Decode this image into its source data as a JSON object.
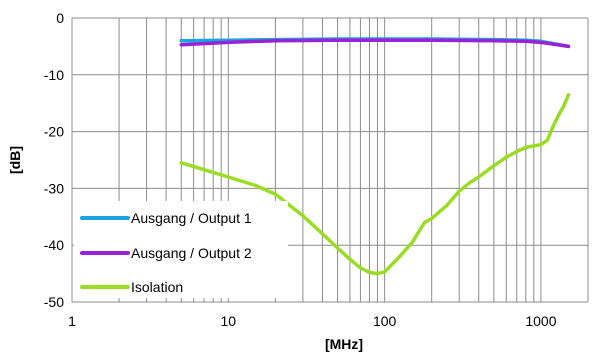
{
  "chart_data": {
    "type": "line",
    "xlabel": "[MHz]",
    "ylabel": "[dB]",
    "x_scale": "log",
    "xlim": [
      1,
      2000
    ],
    "ylim": [
      -50,
      0
    ],
    "x_ticks": [
      1,
      10,
      100,
      1000
    ],
    "x_tick_labels": [
      "1",
      "10",
      "100",
      "1000"
    ],
    "y_ticks": [
      0,
      -10,
      -20,
      -30,
      -40,
      -50
    ],
    "y_tick_labels": [
      "0",
      "-10",
      "-20",
      "-30",
      "-40",
      "-50"
    ],
    "grid": true,
    "legend_position": "bottom-left",
    "series": [
      {
        "name": "Ausgang / Output 1",
        "color": "#1aa3e0",
        "x": [
          5,
          10,
          20,
          50,
          100,
          200,
          500,
          800,
          1000,
          1200,
          1500
        ],
        "y": [
          -4.0,
          -3.9,
          -3.8,
          -3.7,
          -3.7,
          -3.7,
          -3.8,
          -3.9,
          -4.1,
          -4.5,
          -5.0
        ]
      },
      {
        "name": "Ausgang / Output 2",
        "color": "#9a22d6",
        "x": [
          5,
          10,
          20,
          50,
          100,
          200,
          500,
          800,
          1000,
          1200,
          1500
        ],
        "y": [
          -4.7,
          -4.3,
          -4.0,
          -3.9,
          -3.9,
          -3.9,
          -4.0,
          -4.1,
          -4.3,
          -4.6,
          -5.0
        ]
      },
      {
        "name": "Isolation",
        "color": "#99dd22",
        "x": [
          5,
          7,
          10,
          15,
          20,
          30,
          40,
          50,
          60,
          70,
          80,
          90,
          100,
          120,
          150,
          180,
          200,
          250,
          300,
          350,
          400,
          500,
          600,
          700,
          800,
          900,
          1000,
          1100,
          1200,
          1300,
          1400,
          1500
        ],
        "y": [
          -25.5,
          -26.7,
          -28.0,
          -29.5,
          -31.0,
          -34.8,
          -38.0,
          -40.5,
          -42.5,
          -44.0,
          -44.8,
          -45.0,
          -44.7,
          -42.5,
          -39.5,
          -36.0,
          -35.3,
          -33.0,
          -30.5,
          -29.0,
          -28.0,
          -26.0,
          -24.5,
          -23.5,
          -22.8,
          -22.5,
          -22.3,
          -21.5,
          -19.0,
          -17.0,
          -15.5,
          -13.5
        ]
      }
    ]
  }
}
